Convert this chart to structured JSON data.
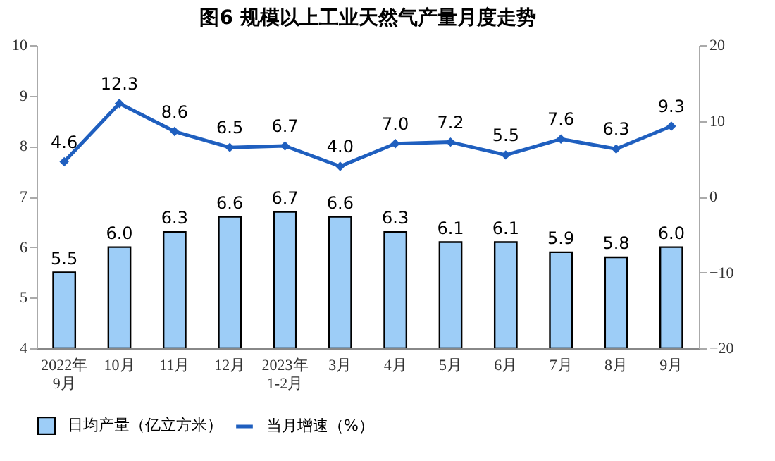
{
  "chart_data": {
    "type": "bar",
    "title": "图6  规模以上工业天然气产量月度走势",
    "categories": [
      "2022年\n9月",
      "10月",
      "11月",
      "12月",
      "2023年\n1-2月",
      "3月",
      "4月",
      "5月",
      "6月",
      "7月",
      "8月",
      "9月"
    ],
    "series": [
      {
        "name": "日均产量（亿立方米）",
        "color": "#9dcdf7",
        "values": [
          5.5,
          6.0,
          6.3,
          6.6,
          6.7,
          6.6,
          6.3,
          6.1,
          6.1,
          5.9,
          5.8,
          6.0
        ],
        "value_labels": [
          "5.5",
          "6.0",
          "6.3",
          "6.6",
          "6.7",
          "6.6",
          "6.3",
          "6.1",
          "6.1",
          "5.9",
          "5.8",
          "6.0"
        ]
      },
      {
        "name": "当月增速（%）",
        "type": "line",
        "axis": "y2",
        "color": "#1f5fbf",
        "values": [
          4.6,
          12.3,
          8.6,
          6.5,
          6.7,
          4.0,
          7.0,
          7.2,
          5.5,
          7.6,
          6.3,
          9.3
        ],
        "value_labels": [
          "4.6",
          "12.3",
          "8.6",
          "6.5",
          "6.7",
          "4.0",
          "7.0",
          "7.2",
          "5.5",
          "7.6",
          "6.3",
          "9.3"
        ]
      }
    ],
    "ylim": [
      4,
      10
    ],
    "yticks": [
      4,
      5,
      6,
      7,
      8,
      9,
      10
    ],
    "y2lim": [
      -20,
      20
    ],
    "y2ticks": [
      -20,
      -10,
      0,
      10,
      20
    ],
    "legend": "bottom",
    "marker": "diamond"
  }
}
